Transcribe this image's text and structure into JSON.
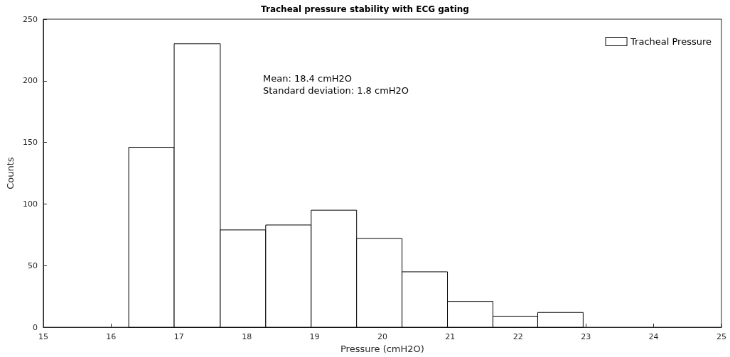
{
  "chart_data": {
    "type": "histogram",
    "title": "Tracheal pressure stability with ECG gating",
    "xlabel": "Pressure (cmH2O)",
    "ylabel": "Counts",
    "bins": [
      16.26,
      16.93,
      17.61,
      18.28,
      18.95,
      19.62,
      20.29,
      20.96,
      21.63,
      22.29,
      22.96
    ],
    "series": [
      {
        "name": "Tracheal Pressure",
        "color": "#ffffff",
        "values": [
          146,
          230,
          79,
          83,
          95,
          72,
          45,
          21,
          9,
          12
        ]
      }
    ],
    "annotations": [
      "Mean: 18.4 cmH2O",
      "Standard deviation: 1.8 cmH2O"
    ],
    "xlim": [
      15,
      25
    ],
    "xticks": [
      15,
      16,
      17,
      18,
      19,
      20,
      21,
      22,
      23,
      24,
      25
    ],
    "ylim": [
      0,
      250
    ],
    "yticks": [
      0,
      50,
      100,
      150,
      200,
      250
    ],
    "grid": false,
    "legend": "top right"
  }
}
